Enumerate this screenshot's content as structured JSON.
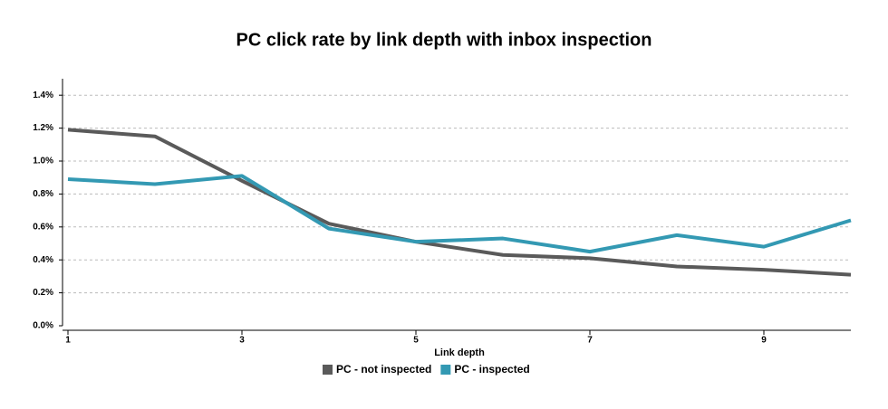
{
  "chart_data": {
    "type": "line",
    "title": "PC click rate by link depth with inbox inspection",
    "x_label": "Link depth",
    "x": [
      1,
      2,
      3,
      4,
      5,
      6,
      7,
      8,
      9,
      10
    ],
    "series": [
      {
        "name": "PC - not inspected",
        "color": "#5a5a5a",
        "values": [
          1.19,
          1.15,
          0.88,
          0.62,
          0.51,
          0.43,
          0.41,
          0.36,
          0.34,
          0.31
        ]
      },
      {
        "name": "PC - inspected",
        "color": "#3399b3",
        "values": [
          0.89,
          0.86,
          0.91,
          0.59,
          0.51,
          0.53,
          0.45,
          0.55,
          0.48,
          0.64
        ]
      }
    ],
    "xlim": [
      1,
      10
    ],
    "xticks": [
      1,
      3,
      5,
      7,
      9
    ],
    "ylim": [
      0,
      1.5
    ],
    "yticks": [
      {
        "value": 0,
        "label": "0.0%"
      },
      {
        "value": 0.2,
        "label": "0.2%"
      },
      {
        "value": 0.4,
        "label": "0.4%"
      },
      {
        "value": 0.6,
        "label": "0.6%"
      },
      {
        "value": 0.8,
        "label": "0.8%"
      },
      {
        "value": 1.0,
        "label": "1.0%"
      },
      {
        "value": 1.2,
        "label": "1.2%"
      },
      {
        "value": 1.4,
        "label": "1.4%"
      }
    ],
    "grid": true,
    "legend": "bottom"
  }
}
